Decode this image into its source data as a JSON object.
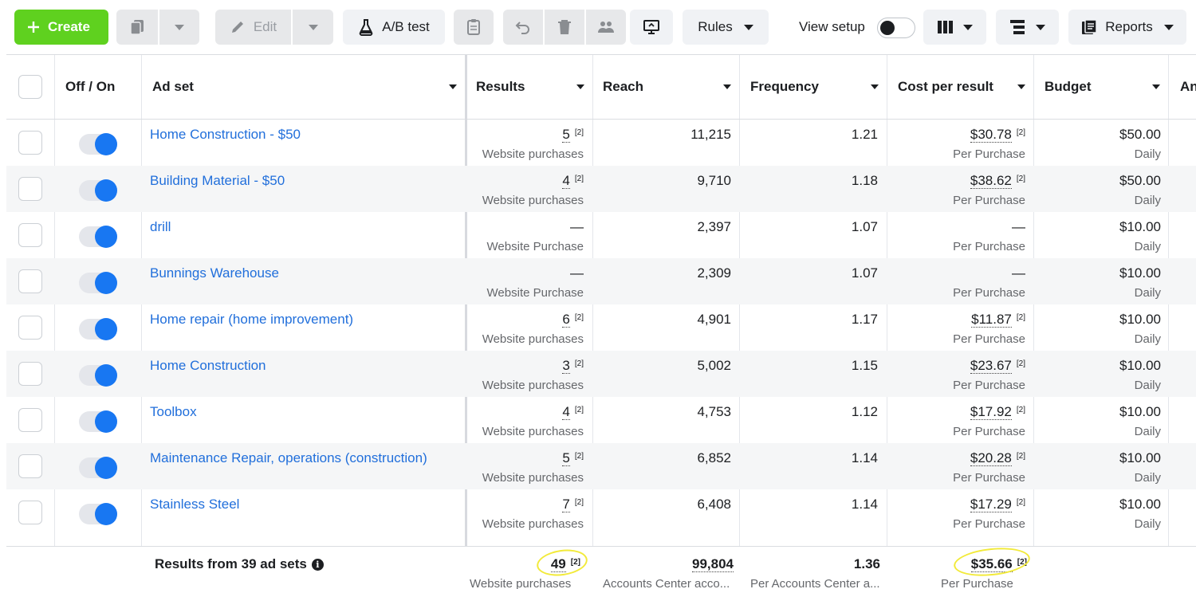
{
  "toolbar": {
    "create_label": "Create",
    "edit_label": "Edit",
    "ab_test_label": "A/B test",
    "rules_label": "Rules",
    "view_setup_label": "View setup",
    "reports_label": "Reports"
  },
  "table": {
    "columns": {
      "toggle": "Off / On",
      "ad_set": "Ad set",
      "results": "Results",
      "reach": "Reach",
      "frequency": "Frequency",
      "cost_per_result": "Cost per result",
      "budget": "Budget",
      "amount_peek": "An"
    },
    "footnote": "[2]",
    "rows": [
      {
        "name": "Home Construction - $50",
        "results": "5",
        "results_sub": "Website purchases",
        "reach": "11,215",
        "frequency": "1.21",
        "cost": "$30.78",
        "cost_sub": "Per Purchase",
        "budget": "$50.00",
        "budget_sub": "Daily"
      },
      {
        "name": "Building Material - $50",
        "results": "4",
        "results_sub": "Website purchases",
        "reach": "9,710",
        "frequency": "1.18",
        "cost": "$38.62",
        "cost_sub": "Per Purchase",
        "budget": "$50.00",
        "budget_sub": "Daily"
      },
      {
        "name": "drill",
        "results": "—",
        "results_sub": "Website Purchase",
        "reach": "2,397",
        "frequency": "1.07",
        "cost": "—",
        "cost_sub": "Per Purchase",
        "budget": "$10.00",
        "budget_sub": "Daily"
      },
      {
        "name": "Bunnings Warehouse",
        "results": "—",
        "results_sub": "Website Purchase",
        "reach": "2,309",
        "frequency": "1.07",
        "cost": "—",
        "cost_sub": "Per Purchase",
        "budget": "$10.00",
        "budget_sub": "Daily"
      },
      {
        "name": "Home repair (home improvement)",
        "results": "6",
        "results_sub": "Website purchases",
        "reach": "4,901",
        "frequency": "1.17",
        "cost": "$11.87",
        "cost_sub": "Per Purchase",
        "budget": "$10.00",
        "budget_sub": "Daily"
      },
      {
        "name": "Home Construction",
        "results": "3",
        "results_sub": "Website purchases",
        "reach": "5,002",
        "frequency": "1.15",
        "cost": "$23.67",
        "cost_sub": "Per Purchase",
        "budget": "$10.00",
        "budget_sub": "Daily"
      },
      {
        "name": "Toolbox",
        "results": "4",
        "results_sub": "Website purchases",
        "reach": "4,753",
        "frequency": "1.12",
        "cost": "$17.92",
        "cost_sub": "Per Purchase",
        "budget": "$10.00",
        "budget_sub": "Daily"
      },
      {
        "name": "Maintenance Repair, operations (construction)",
        "results": "5",
        "results_sub": "Website purchases",
        "reach": "6,852",
        "frequency": "1.14",
        "cost": "$20.28",
        "cost_sub": "Per Purchase",
        "budget": "$10.00",
        "budget_sub": "Daily"
      },
      {
        "name": "Stainless Steel",
        "results": "7",
        "results_sub": "Website purchases",
        "reach": "6,408",
        "frequency": "1.14",
        "cost": "$17.29",
        "cost_sub": "Per Purchase",
        "budget": "$10.00",
        "budget_sub": "Daily"
      }
    ],
    "summary": {
      "label": "Results from 39 ad sets",
      "results": "49",
      "results_sub": "Website purchases",
      "reach": "99,804",
      "reach_sub": "Accounts Center acco...",
      "frequency": "1.36",
      "frequency_sub": "Per Accounts Center a...",
      "cost": "$35.66",
      "cost_sub": "Per Purchase"
    }
  },
  "colors": {
    "create_green": "#5fd11f",
    "link_blue": "#216fdb",
    "toggle_blue": "#1877f2",
    "highlight_yellow": "#f2ea3a"
  }
}
